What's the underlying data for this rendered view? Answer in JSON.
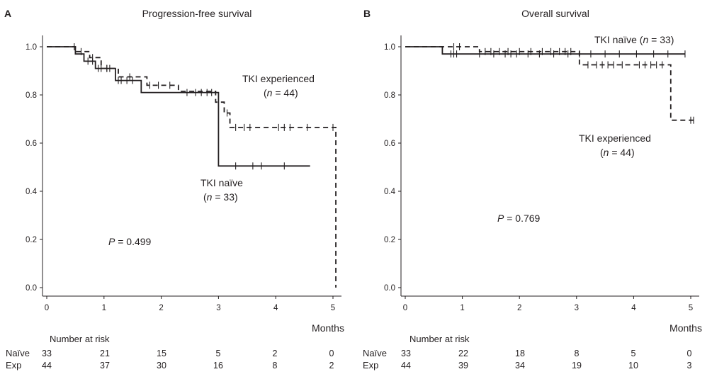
{
  "chart_data": [
    {
      "type": "kaplan-meier",
      "panel": "A",
      "title": "Progression-free survival",
      "xlabel": "Months",
      "xlim": [
        0,
        5
      ],
      "ylim": [
        0,
        1
      ],
      "xticks": [
        "0",
        "1",
        "2",
        "3",
        "4",
        "5"
      ],
      "yticks": [
        "0.0",
        "0.2",
        "0.4",
        "0.6",
        "0.8",
        "1.0"
      ],
      "p_label": "P",
      "p_value": " = 0.499",
      "series": [
        {
          "name": "TKI naïve",
          "n_pre": "(",
          "n_var": "n",
          "n_post": " = 33)",
          "style": "solid",
          "steps": [
            [
              0,
              1.0
            ],
            [
              0.5,
              0.97
            ],
            [
              0.65,
              0.94
            ],
            [
              0.85,
              0.91
            ],
            [
              1.2,
              0.86
            ],
            [
              1.65,
              0.81
            ],
            [
              3.0,
              0.81
            ],
            [
              3.0,
              0.505
            ],
            [
              4.6,
              0.505
            ]
          ],
          "censors": [
            [
              0.48,
              1.0
            ],
            [
              0.72,
              0.94
            ],
            [
              0.8,
              0.94
            ],
            [
              0.9,
              0.91
            ],
            [
              0.95,
              0.91
            ],
            [
              1.05,
              0.91
            ],
            [
              1.25,
              0.86
            ],
            [
              1.3,
              0.86
            ],
            [
              1.4,
              0.86
            ],
            [
              1.5,
              0.86
            ],
            [
              2.45,
              0.81
            ],
            [
              2.6,
              0.81
            ],
            [
              2.7,
              0.81
            ],
            [
              2.8,
              0.81
            ],
            [
              2.88,
              0.81
            ],
            [
              3.3,
              0.505
            ],
            [
              3.6,
              0.505
            ],
            [
              3.75,
              0.505
            ],
            [
              4.15,
              0.505
            ]
          ]
        },
        {
          "name": "TKI experienced",
          "n_pre": "(",
          "n_var": "n",
          "n_post": " = 44)",
          "style": "dashed",
          "steps": [
            [
              0,
              1.0
            ],
            [
              0.5,
              0.98
            ],
            [
              0.75,
              0.955
            ],
            [
              0.95,
              0.91
            ],
            [
              1.25,
              0.875
            ],
            [
              1.75,
              0.84
            ],
            [
              2.3,
              0.815
            ],
            [
              2.95,
              0.77
            ],
            [
              3.1,
              0.725
            ],
            [
              3.2,
              0.665
            ],
            [
              5.05,
              0.665
            ],
            [
              5.05,
              0.0
            ]
          ],
          "censors": [
            [
              0.6,
              0.98
            ],
            [
              0.8,
              0.955
            ],
            [
              1.05,
              0.91
            ],
            [
              1.1,
              0.91
            ],
            [
              1.45,
              0.875
            ],
            [
              1.8,
              0.84
            ],
            [
              1.95,
              0.84
            ],
            [
              2.15,
              0.84
            ],
            [
              3.15,
              0.725
            ],
            [
              3.3,
              0.665
            ],
            [
              3.45,
              0.665
            ],
            [
              3.55,
              0.665
            ],
            [
              4.05,
              0.665
            ],
            [
              4.15,
              0.665
            ],
            [
              4.25,
              0.665
            ],
            [
              4.55,
              0.665
            ],
            [
              5.0,
              0.665
            ]
          ]
        }
      ],
      "risk_table": {
        "heading": "Number at risk",
        "rows": [
          {
            "label": "Naïve",
            "values": [
              "33",
              "21",
              "15",
              "5",
              "2",
              "0"
            ]
          },
          {
            "label": "Exp",
            "values": [
              "44",
              "37",
              "30",
              "16",
              "8",
              "2"
            ]
          }
        ]
      }
    },
    {
      "type": "kaplan-meier",
      "panel": "B",
      "title": "Overall survival",
      "xlabel": "Months",
      "xlim": [
        0,
        5
      ],
      "ylim": [
        0,
        1
      ],
      "xticks": [
        "0",
        "1",
        "2",
        "3",
        "4",
        "5"
      ],
      "yticks": [
        "0.0",
        "0.2",
        "0.4",
        "0.6",
        "0.8",
        "1.0"
      ],
      "p_label": "P",
      "p_value": " = 0.769",
      "series": [
        {
          "name": "TKI naïve",
          "n_pre": "(",
          "n_var": "n",
          "n_post": " = 33)",
          "style": "solid",
          "steps": [
            [
              0,
              1.0
            ],
            [
              0.65,
              0.97
            ],
            [
              4.9,
              0.97
            ]
          ],
          "censors": [
            [
              0.8,
              0.97
            ],
            [
              0.85,
              0.97
            ],
            [
              0.9,
              0.97
            ],
            [
              1.3,
              0.97
            ],
            [
              1.55,
              0.97
            ],
            [
              1.75,
              0.97
            ],
            [
              1.85,
              0.97
            ],
            [
              1.95,
              0.97
            ],
            [
              2.15,
              0.97
            ],
            [
              2.35,
              0.97
            ],
            [
              2.6,
              0.97
            ],
            [
              2.85,
              0.97
            ],
            [
              3.05,
              0.97
            ],
            [
              3.25,
              0.97
            ],
            [
              3.5,
              0.97
            ],
            [
              3.75,
              0.97
            ],
            [
              4.05,
              0.97
            ],
            [
              4.35,
              0.97
            ],
            [
              4.6,
              0.97
            ],
            [
              4.9,
              0.97
            ]
          ]
        },
        {
          "name": "TKI experienced",
          "n_pre": "(",
          "n_var": "n",
          "n_post": " = 44)",
          "style": "dashed",
          "steps": [
            [
              0,
              1.0
            ],
            [
              1.3,
              0.98
            ],
            [
              3.05,
              0.925
            ],
            [
              4.65,
              0.695
            ],
            [
              5.05,
              0.695
            ]
          ],
          "censors": [
            [
              0.85,
              1.0
            ],
            [
              0.95,
              1.0
            ],
            [
              1.4,
              0.98
            ],
            [
              1.5,
              0.98
            ],
            [
              1.65,
              0.98
            ],
            [
              1.8,
              0.98
            ],
            [
              2.0,
              0.98
            ],
            [
              2.2,
              0.98
            ],
            [
              2.4,
              0.98
            ],
            [
              2.55,
              0.98
            ],
            [
              2.7,
              0.98
            ],
            [
              2.8,
              0.98
            ],
            [
              2.9,
              0.98
            ],
            [
              3.2,
              0.925
            ],
            [
              3.35,
              0.925
            ],
            [
              3.45,
              0.925
            ],
            [
              3.55,
              0.925
            ],
            [
              3.65,
              0.925
            ],
            [
              3.8,
              0.925
            ],
            [
              4.1,
              0.925
            ],
            [
              4.2,
              0.925
            ],
            [
              4.3,
              0.925
            ],
            [
              4.4,
              0.925
            ],
            [
              4.5,
              0.925
            ],
            [
              5.0,
              0.695
            ],
            [
              5.05,
              0.695
            ]
          ]
        }
      ],
      "risk_table": {
        "heading": "Number at risk",
        "rows": [
          {
            "label": "Naïve",
            "values": [
              "33",
              "22",
              "18",
              "8",
              "5",
              "0"
            ]
          },
          {
            "label": "Exp",
            "values": [
              "44",
              "39",
              "34",
              "19",
              "10",
              "3"
            ]
          }
        ]
      }
    }
  ]
}
